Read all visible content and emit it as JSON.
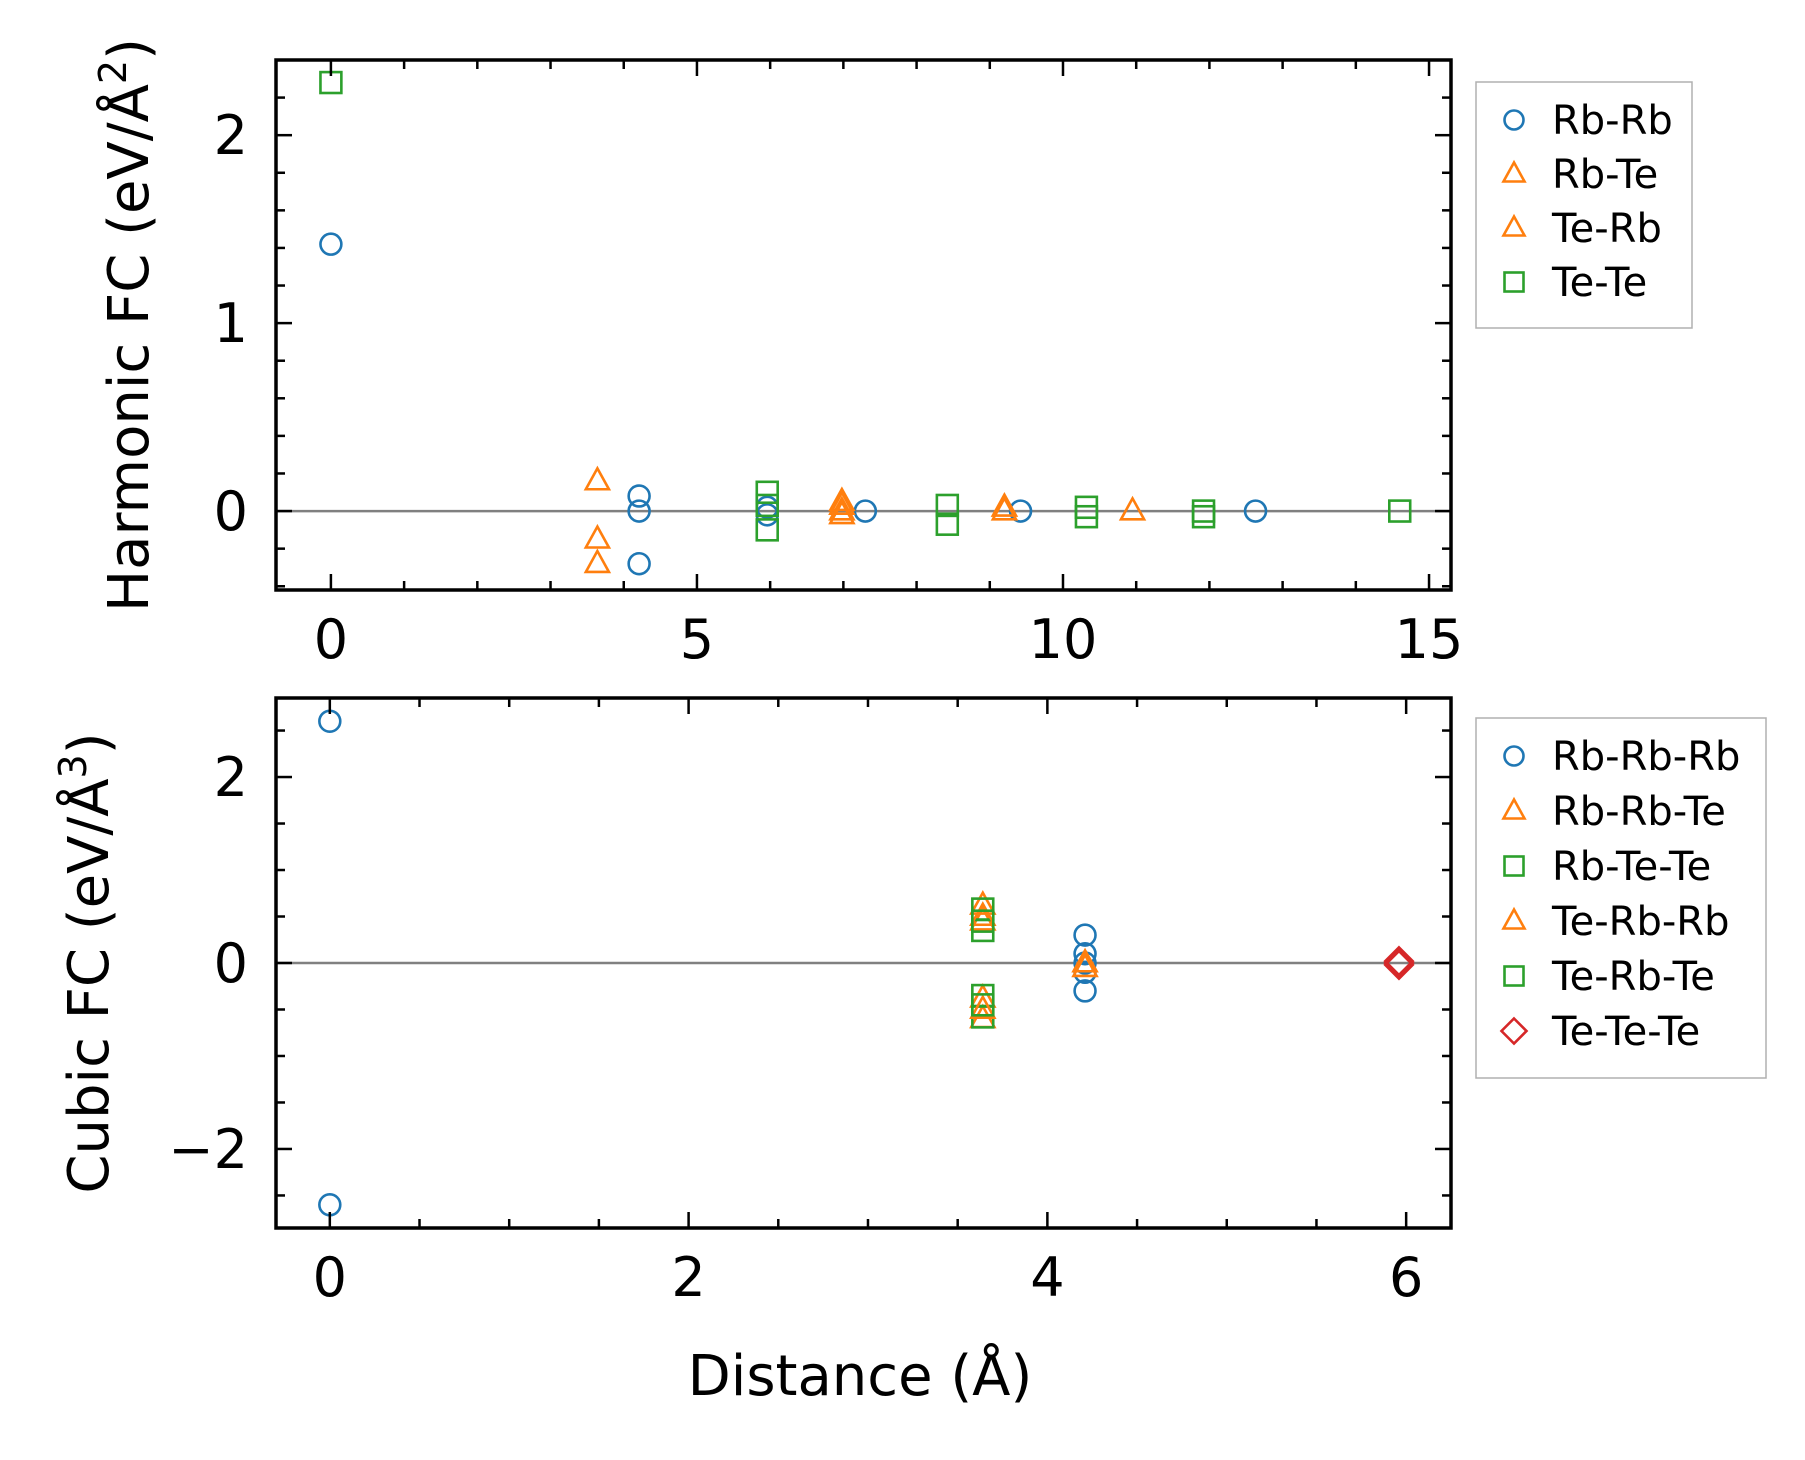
{
  "chart_data": [
    {
      "type": "scatter",
      "title": "",
      "xlabel": "",
      "ylabel": "Harmonic FC (eV/Å²)",
      "ylabel_parts": {
        "prefix": "Harmonic FC (eV/Å",
        "sup": "2",
        "suffix": ")"
      },
      "xlim": [
        -0.75,
        15.3
      ],
      "ylim": [
        -0.42,
        2.4
      ],
      "xticks": [
        0,
        5,
        10,
        15
      ],
      "yticks": [
        0,
        1,
        2
      ],
      "xminor_step": 1,
      "yminor_step": 0.2,
      "zero_line": true,
      "legend_position": "outside-right-top",
      "series": [
        {
          "name": "Rb-Rb",
          "marker": "circle",
          "color": "#1f77b4",
          "points": [
            [
              0,
              1.42
            ],
            [
              4.21,
              0.08
            ],
            [
              4.21,
              0.0
            ],
            [
              4.21,
              -0.28
            ],
            [
              5.96,
              0.02
            ],
            [
              5.96,
              -0.02
            ],
            [
              7.3,
              0.0
            ],
            [
              9.42,
              0.0
            ],
            [
              12.63,
              0.0
            ]
          ]
        },
        {
          "name": "Rb-Te",
          "marker": "triangle",
          "color": "#ff7f0e",
          "points": [
            [
              3.64,
              0.16
            ],
            [
              3.64,
              -0.15
            ],
            [
              3.64,
              -0.28
            ],
            [
              6.98,
              0.05
            ],
            [
              6.98,
              0.0
            ],
            [
              9.2,
              0.02
            ],
            [
              10.95,
              0.0
            ]
          ]
        },
        {
          "name": "Te-Rb",
          "marker": "triangle",
          "color": "#ff7f0e",
          "points": [
            [
              6.98,
              0.03
            ],
            [
              6.98,
              -0.02
            ],
            [
              9.2,
              0.0
            ]
          ]
        },
        {
          "name": "Te-Te",
          "marker": "square",
          "color": "#2ca02c",
          "points": [
            [
              0,
              2.28
            ],
            [
              5.96,
              0.1
            ],
            [
              5.96,
              0.03
            ],
            [
              5.96,
              -0.1
            ],
            [
              8.42,
              0.03
            ],
            [
              8.42,
              -0.07
            ],
            [
              10.32,
              0.02
            ],
            [
              10.32,
              -0.03
            ],
            [
              11.92,
              0.0
            ],
            [
              11.92,
              -0.03
            ],
            [
              14.6,
              0.0
            ]
          ]
        }
      ]
    },
    {
      "type": "scatter",
      "title": "",
      "xlabel": "Distance (Å)",
      "ylabel": "Cubic FC (eV/Å³)",
      "ylabel_parts": {
        "prefix": "Cubic FC (eV/Å",
        "sup": "3",
        "suffix": ")"
      },
      "xlim": [
        -0.3,
        6.25
      ],
      "ylim": [
        -2.85,
        2.85
      ],
      "xticks": [
        0,
        2,
        4,
        6
      ],
      "yticks": [
        -2,
        0,
        2
      ],
      "ytick_labels": [
        "−2",
        "0",
        "2"
      ],
      "xminor_step": 0.5,
      "yminor_step": 0.5,
      "zero_line": true,
      "legend_position": "outside-right-top",
      "series": [
        {
          "name": "Rb-Rb-Rb",
          "marker": "circle",
          "color": "#1f77b4",
          "points": [
            [
              0,
              2.6
            ],
            [
              0,
              -2.6
            ],
            [
              4.21,
              0.3
            ],
            [
              4.21,
              0.1
            ],
            [
              4.21,
              0.0
            ],
            [
              4.21,
              -0.1
            ],
            [
              4.21,
              -0.3
            ]
          ]
        },
        {
          "name": "Rb-Rb-Te",
          "marker": "triangle",
          "color": "#ff7f0e",
          "points": [
            [
              3.64,
              0.62
            ],
            [
              3.64,
              0.45
            ],
            [
              3.64,
              -0.38
            ],
            [
              3.64,
              -0.6
            ],
            [
              4.21,
              0.0
            ]
          ]
        },
        {
          "name": "Rb-Te-Te",
          "marker": "square",
          "color": "#2ca02c",
          "points": [
            [
              3.64,
              0.58
            ],
            [
              3.64,
              0.35
            ],
            [
              3.64,
              -0.35
            ],
            [
              3.64,
              -0.58
            ]
          ]
        },
        {
          "name": "Te-Rb-Rb",
          "marker": "triangle",
          "color": "#ff7f0e",
          "points": [
            [
              3.64,
              0.5
            ],
            [
              3.64,
              -0.5
            ],
            [
              4.21,
              -0.05
            ]
          ]
        },
        {
          "name": "Te-Rb-Te",
          "marker": "square",
          "color": "#2ca02c",
          "points": [
            [
              3.64,
              0.45
            ],
            [
              3.64,
              -0.45
            ]
          ]
        },
        {
          "name": "Te-Te-Te",
          "marker": "diamond",
          "color": "#d62728",
          "points": [
            [
              5.96,
              0.02
            ],
            [
              5.96,
              0.0
            ],
            [
              5.96,
              -0.02
            ]
          ]
        }
      ]
    }
  ]
}
